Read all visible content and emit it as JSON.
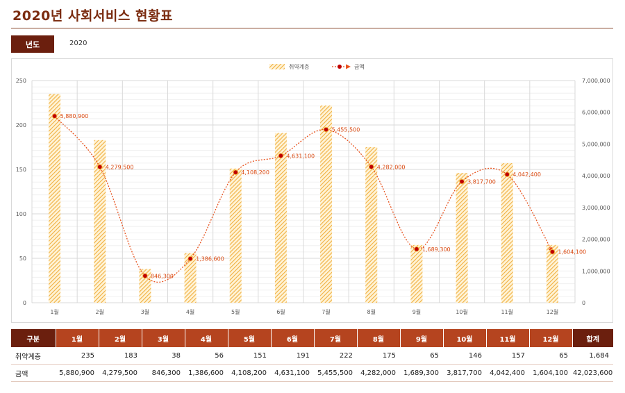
{
  "header": {
    "title": "2020년 사회서비스 현황표"
  },
  "filter": {
    "year_label": "년도",
    "year_value": "2020"
  },
  "chart_data": {
    "type": "bar+line",
    "categories": [
      "1월",
      "2월",
      "3월",
      "4월",
      "5월",
      "6월",
      "7월",
      "8월",
      "9월",
      "10월",
      "11월",
      "12월"
    ],
    "series": [
      {
        "name": "취약계층",
        "type": "bar",
        "axis": "left",
        "values": [
          235,
          183,
          38,
          56,
          151,
          191,
          222,
          175,
          65,
          146,
          157,
          65
        ]
      },
      {
        "name": "금액",
        "type": "line",
        "axis": "right",
        "values": [
          5880900,
          4279500,
          846300,
          1386600,
          4108200,
          4631100,
          5455500,
          4282000,
          1689300,
          3817700,
          4042400,
          1604100
        ]
      }
    ],
    "y_left": {
      "min": 0,
      "max": 250,
      "ticks": [
        0,
        50,
        100,
        150,
        200,
        250
      ]
    },
    "y_right": {
      "min": 0,
      "max": 7000000,
      "ticks": [
        0,
        1000000,
        2000000,
        3000000,
        4000000,
        5000000,
        6000000,
        7000000
      ]
    },
    "legend": {
      "position": "top",
      "items": [
        "취약계층",
        "금액"
      ]
    },
    "colors": {
      "bar": "#f5c060",
      "line": "#e8531e",
      "marker": "#c00000"
    }
  },
  "table": {
    "headers": [
      "구분",
      "1월",
      "2월",
      "3월",
      "4월",
      "5월",
      "6월",
      "7월",
      "8월",
      "9월",
      "10월",
      "11월",
      "12월",
      "합계"
    ],
    "rows": [
      {
        "label": "취약계층",
        "values": [
          "235",
          "183",
          "38",
          "56",
          "151",
          "191",
          "222",
          "175",
          "65",
          "146",
          "157",
          "65"
        ],
        "total": "1,684"
      },
      {
        "label": "금액",
        "values": [
          "5,880,900",
          "4,279,500",
          "846,300",
          "1,386,600",
          "4,108,200",
          "4,631,100",
          "5,455,500",
          "4,282,000",
          "1,689,300",
          "3,817,700",
          "4,042,400",
          "1,604,100"
        ],
        "total": "42,023,600"
      }
    ]
  }
}
